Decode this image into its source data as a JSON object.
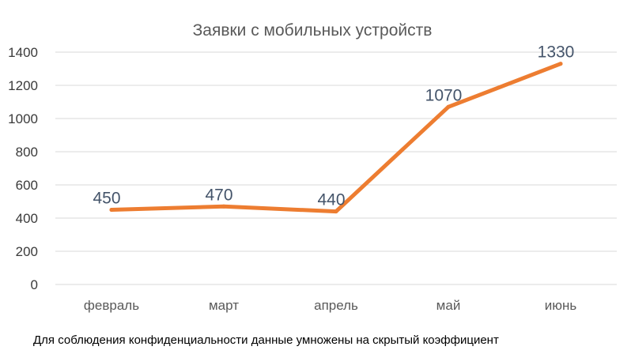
{
  "chart_data": {
    "type": "line",
    "title": "Заявки с мобильных устройств",
    "categories": [
      "февраль",
      "март",
      "апрель",
      "май",
      "июнь"
    ],
    "values": [
      450,
      470,
      440,
      1070,
      1330
    ],
    "data_labels": [
      "450",
      "470",
      "440",
      "1070",
      "1330"
    ],
    "y_ticks": [
      "0",
      "200",
      "400",
      "600",
      "800",
      "1000",
      "1200",
      "1400"
    ],
    "ylim": [
      0,
      1400
    ],
    "grid": true,
    "legend": "none",
    "xlabel": "",
    "ylabel": "",
    "line_color": "#ed7d31",
    "grid_color": "#d9d9d9",
    "label_color": "#44546a"
  },
  "footnote": "Для соблюдения конфиденциальности данные умножены на скрытый коэффициент"
}
